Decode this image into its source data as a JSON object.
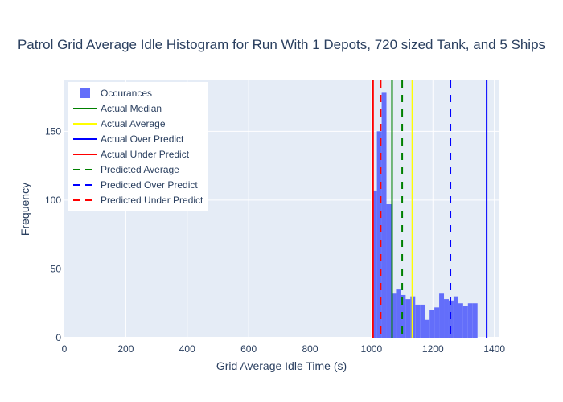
{
  "chart_data": {
    "type": "bar",
    "title": "Patrol Grid Average Idle Histogram for Run With 1 Depots, 720 sized Tank, and 5 Ships",
    "xlabel": "Grid Average Idle Time (s)",
    "ylabel": "Frequency",
    "xlim": [
      0,
      1414
    ],
    "ylim": [
      0,
      187
    ],
    "x_ticks": [
      0,
      200,
      400,
      600,
      800,
      1000,
      1200,
      1400
    ],
    "y_ticks": [
      0,
      50,
      100,
      150
    ],
    "grid": true,
    "legend_position": "top-left",
    "histogram": {
      "name": "Occurances",
      "color": "#636efa",
      "bin_start": 1002,
      "bin_width": 15.6,
      "counts": [
        107,
        150,
        178,
        97,
        32,
        35,
        31,
        28,
        30,
        24,
        24,
        13,
        20,
        22,
        32,
        28,
        27,
        30,
        25,
        23,
        25,
        25
      ]
    },
    "lines": [
      {
        "name": "Actual Median",
        "x": 1067,
        "color": "#008000",
        "dash": "solid"
      },
      {
        "name": "Actual Average",
        "x": 1133,
        "color": "#ffff00",
        "dash": "solid"
      },
      {
        "name": "Actual Over Predict",
        "x": 1375,
        "color": "#0000ff",
        "dash": "solid"
      },
      {
        "name": "Actual Under Predict",
        "x": 1005,
        "color": "#ff0000",
        "dash": "solid"
      },
      {
        "name": "Predicted Average",
        "x": 1100,
        "color": "#008000",
        "dash": "dash"
      },
      {
        "name": "Predicted Over Predict",
        "x": 1257,
        "color": "#0000ff",
        "dash": "dash"
      },
      {
        "name": "Predicted Under Predict",
        "x": 1030,
        "color": "#ff0000",
        "dash": "dash"
      }
    ],
    "legend_order": [
      "Occurances",
      "Actual Median",
      "Actual Average",
      "Actual Over Predict",
      "Actual Under Predict",
      "Predicted Average",
      "Predicted Over Predict",
      "Predicted Under Predict"
    ]
  }
}
